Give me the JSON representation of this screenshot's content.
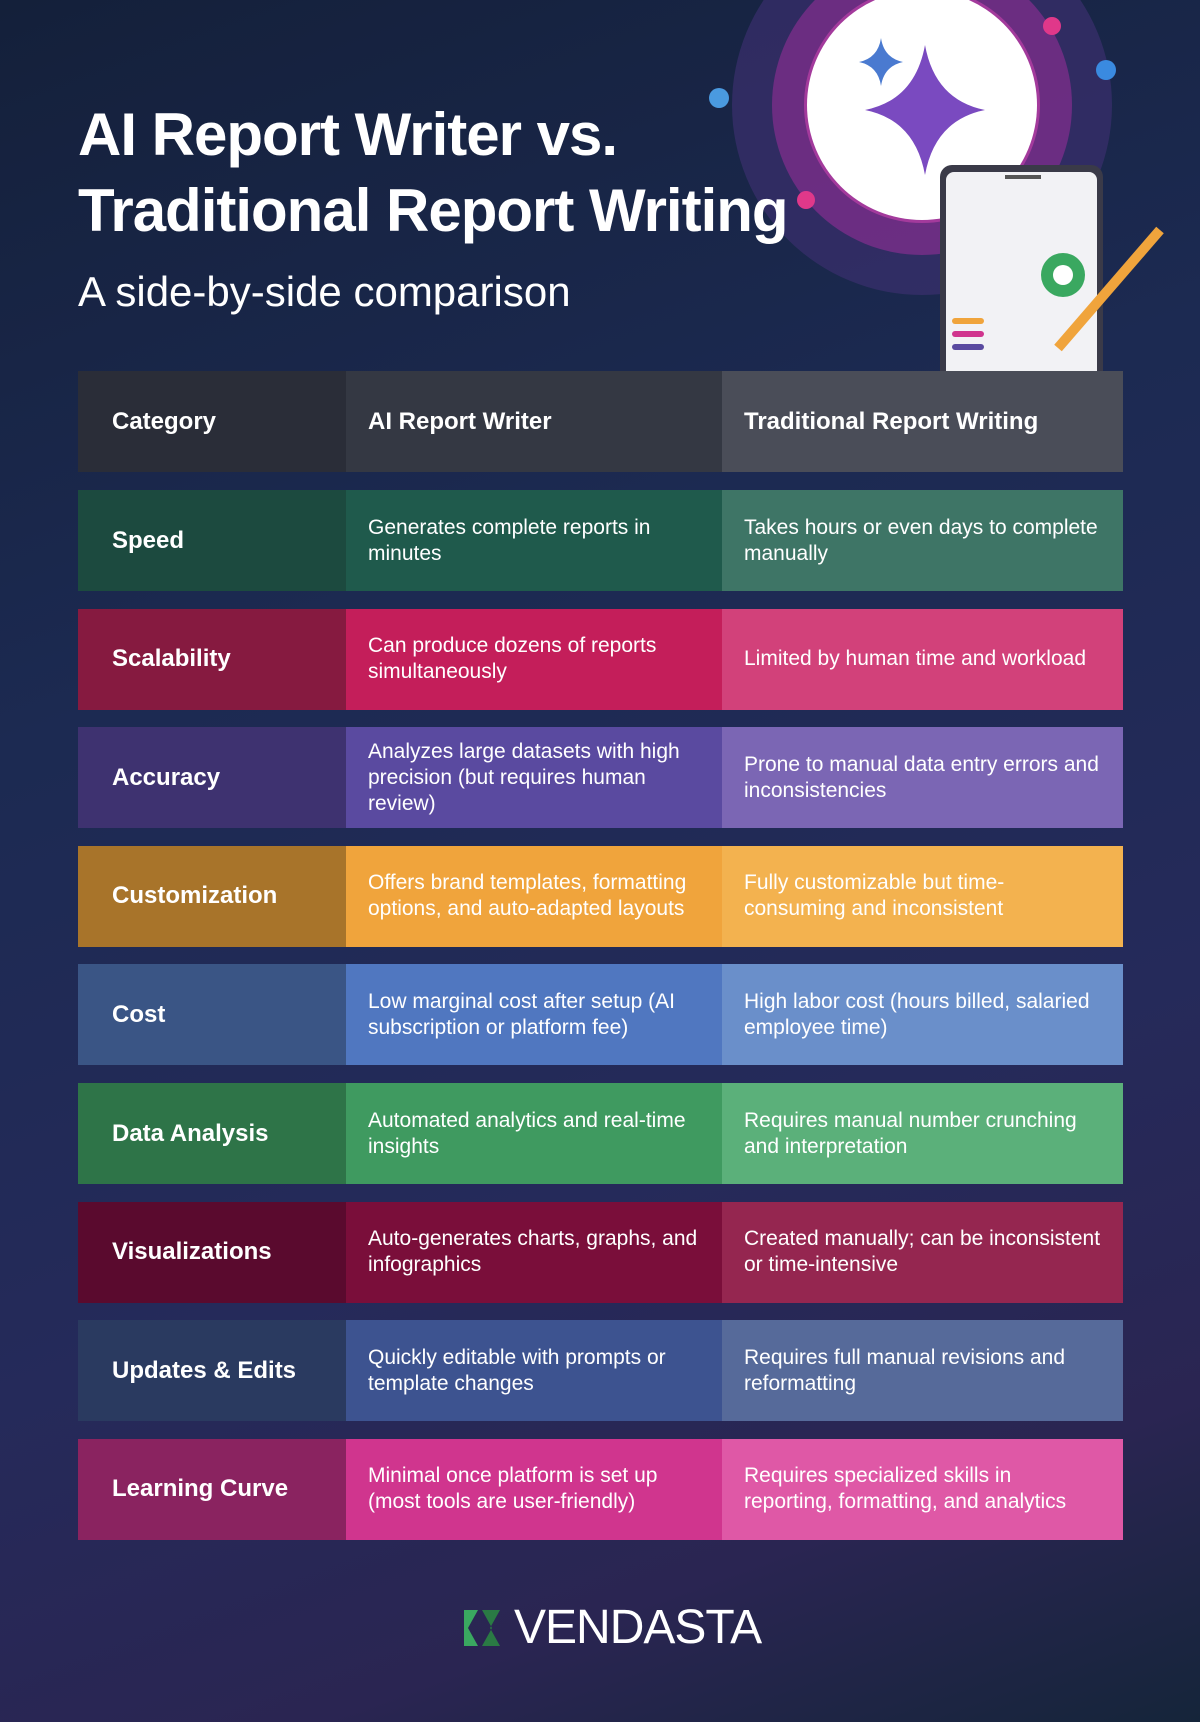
{
  "header": {
    "title": [
      "AI Report Writer vs.",
      "Traditional Report Writing"
    ],
    "subtitle": "A side-by-side comparison"
  },
  "table": {
    "header": [
      "Category",
      "AI Report Writer",
      "Traditional Report Writing"
    ],
    "rows": [
      [
        "Speed",
        "Generates complete reports in minutes",
        "Takes hours or even days to complete manually"
      ],
      [
        "Scalability",
        "Can produce dozens of reports simultaneously",
        "Limited by human time and workload"
      ],
      [
        "Accuracy",
        "Analyzes large datasets with high precision (but requires human review)",
        "Prone to manual data entry errors and inconsistencies"
      ],
      [
        "Customization",
        "Offers brand templates, formatting options, and auto-adapted layouts",
        "Fully customizable but time-consuming and inconsistent"
      ],
      [
        "Cost",
        "Low marginal cost after setup (AI subscription or platform fee)",
        "High labor cost (hours billed, salaried employee time)"
      ],
      [
        "Data Analysis",
        "Automated analytics and real-time insights",
        "Requires manual number crunching and interpretation"
      ],
      [
        "Visualizations",
        "Auto-generates charts, graphs, and infographics",
        "Created manually; can be inconsistent or time-intensive"
      ],
      [
        "Updates & Edits",
        "Quickly editable with prompts or template changes",
        "Requires full manual revisions and reformatting"
      ],
      [
        "Learning Curve",
        "Minimal once platform is set up (most tools are user-friendly)",
        "Requires specialized skills in reporting, formatting, and analytics"
      ]
    ]
  },
  "footer": {
    "logo": "VENDASTA"
  }
}
